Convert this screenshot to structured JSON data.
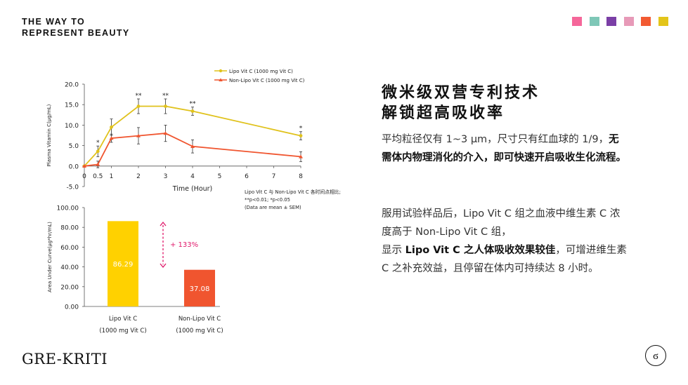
{
  "header": {
    "tagline_line1": "THE WAY TO",
    "tagline_line2": "REPRESENT BEAUTY",
    "swatch_colors": [
      "#f5679a",
      "#7ec7b7",
      "#7b3fa6",
      "#e79ab8",
      "#f25a32",
      "#e3c51a"
    ]
  },
  "footer": {
    "brand": "GRE-KRITI",
    "seal_glyph": "ϭ"
  },
  "content": {
    "heading_line1": "微米级双营专利技术",
    "heading_line2": "解锁超高吸收率",
    "para1_normal": "平均粒径仅有 1~3 μm，尺寸只有红血球的 1/9，",
    "para1_bold": "无需体内物理消化的介入，即可快速开启吸收生化流程。",
    "para2_line1": "服用试验样品后，Lipo Vit C 组之血液中维生素 C 浓度高于 Non-Lipo Vit C 组，",
    "para2_prefix": "显示 ",
    "para2_bold": "Lipo Vit C 之人体吸收效果较佳",
    "para2_suffix": "，可增进维生素 C 之补充效益，且停留在体内可持续达 8 小时。"
  },
  "chart_data": [
    {
      "type": "line",
      "xlabel": "Time (Hour)",
      "ylabel": "Plasma Vitamin C(μg/mL)",
      "x": [
        0,
        0.5,
        1,
        2,
        3,
        4,
        8
      ],
      "xticks": [
        "0",
        "0.5",
        "1",
        "2",
        "3",
        "4",
        "5",
        "6",
        "7",
        "8"
      ],
      "yticks": [
        "20.0",
        "15.0",
        "10.0",
        "5.0",
        "0.0",
        "-5.0"
      ],
      "ylim": [
        -5,
        20
      ],
      "series": [
        {
          "name": "Lipo Vit C (1000 mg Vit C)",
          "color": "#e0c21c",
          "values": [
            0,
            3.6,
            9.5,
            14.6,
            14.6,
            13.4,
            7.4
          ],
          "errors": [
            0,
            1.3,
            2.0,
            1.8,
            1.8,
            1.0,
            1.0
          ]
        },
        {
          "name": "Non-Lipo Vit C (1000 mg Vit C)",
          "color": "#f0552f",
          "values": [
            0,
            0.4,
            6.8,
            7.4,
            8.0,
            4.8,
            2.3
          ],
          "errors": [
            0,
            0.8,
            1.0,
            2.0,
            2.0,
            1.6,
            1.2
          ]
        }
      ],
      "significance": [
        "",
        "*",
        "",
        "**",
        "**",
        "**",
        "*"
      ],
      "annotations": [
        "Lipo Vit C 与 Non-Lipo Vit C 各时间点相比;",
        "**p<0.01; *p<0.05",
        "(Data are mean ± SEM)"
      ]
    },
    {
      "type": "bar",
      "ylabel": "Area Under Curve(μg*hr/mL)",
      "categories": [
        {
          "line1": "Lipo Vit C",
          "line2": "(1000 mg Vit C)"
        },
        {
          "line1": "Non-Lipo Vit C",
          "line2": "(1000 mg Vit C)"
        }
      ],
      "values": [
        86.29,
        37.08
      ],
      "value_labels": [
        "86.29",
        "37.08"
      ],
      "colors": [
        "#ffd100",
        "#f0552f"
      ],
      "ylim": [
        0,
        100
      ],
      "yticks": [
        "100.00",
        "80.00",
        "60.00",
        "40.00",
        "20.00",
        "0.00"
      ],
      "increase_label": "+ 133%",
      "increase_color": "#e0186a"
    }
  ]
}
